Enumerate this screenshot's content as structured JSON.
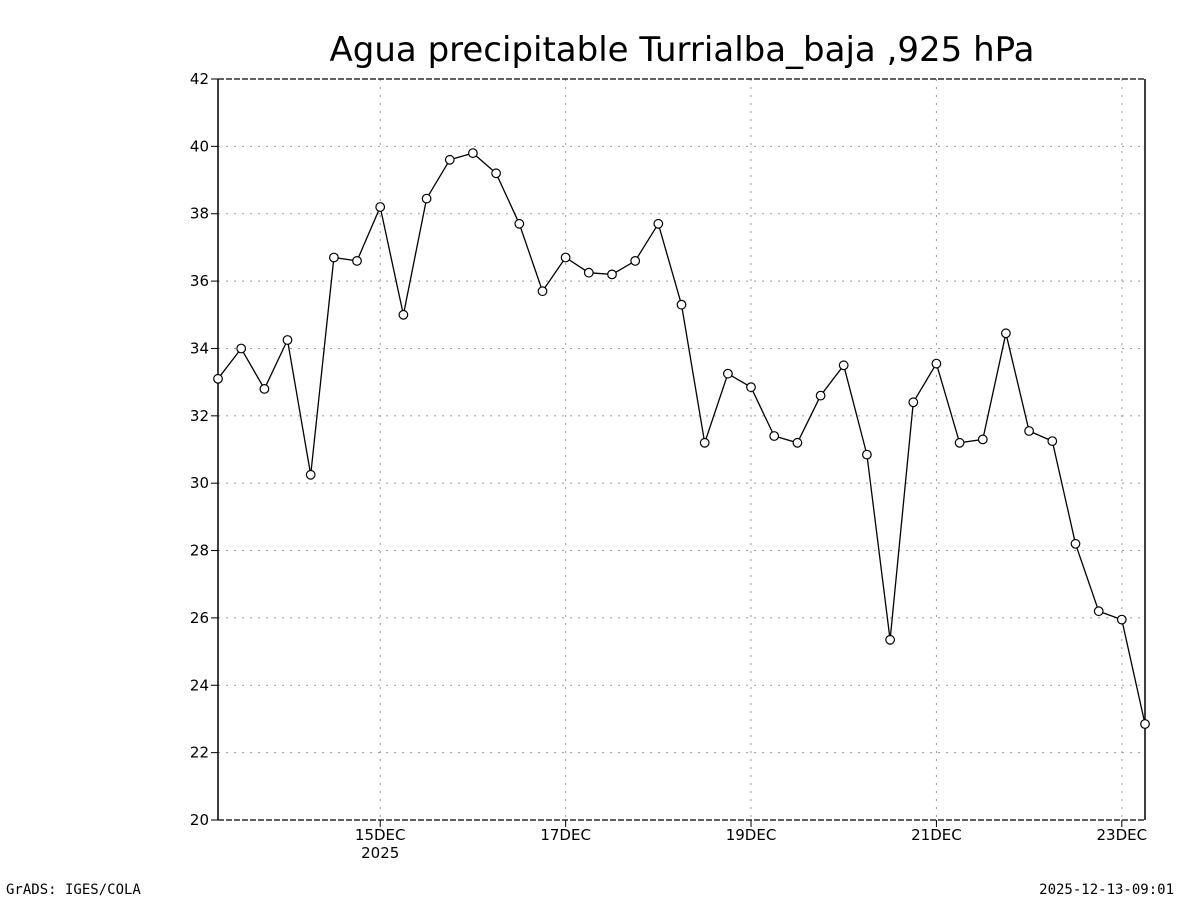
{
  "chart_data": {
    "type": "line",
    "title": "Agua precipitable Turrialba_baja ,925 hPa",
    "xlabel": "",
    "ylabel": "",
    "ylim": [
      20,
      42
    ],
    "yticks": [
      20,
      22,
      24,
      26,
      28,
      30,
      32,
      34,
      36,
      38,
      40,
      42
    ],
    "x_unit": "day of December 2025",
    "xlim": [
      13.25,
      23.25
    ],
    "xticks": [
      {
        "x": 15,
        "label": "15DEC",
        "sublabel": "2025"
      },
      {
        "x": 17,
        "label": "17DEC",
        "sublabel": ""
      },
      {
        "x": 19,
        "label": "19DEC",
        "sublabel": ""
      },
      {
        "x": 21,
        "label": "21DEC",
        "sublabel": ""
      },
      {
        "x": 23,
        "label": "23DEC",
        "sublabel": ""
      }
    ],
    "grid": true,
    "marker": "open-circle",
    "x": [
      13.25,
      13.5,
      13.75,
      14.0,
      14.25,
      14.5,
      14.75,
      15.0,
      15.25,
      15.5,
      15.75,
      16.0,
      16.25,
      16.5,
      16.75,
      17.0,
      17.25,
      17.5,
      17.75,
      18.0,
      18.25,
      18.5,
      18.75,
      19.0,
      19.25,
      19.5,
      19.75,
      20.0,
      20.25,
      20.5,
      20.75,
      21.0,
      21.25,
      21.5,
      21.75,
      22.0,
      22.25,
      22.5,
      22.75,
      23.0,
      23.25
    ],
    "values": [
      33.1,
      34.0,
      32.8,
      34.25,
      30.25,
      36.7,
      36.6,
      38.2,
      35.0,
      38.45,
      39.6,
      39.8,
      39.2,
      37.7,
      35.7,
      36.7,
      36.25,
      36.2,
      36.6,
      37.7,
      35.3,
      31.2,
      33.25,
      32.85,
      31.4,
      31.2,
      32.6,
      33.5,
      30.85,
      25.35,
      32.4,
      33.55,
      31.2,
      31.3,
      34.45,
      31.55,
      31.25,
      28.2,
      26.2,
      25.95,
      22.85
    ]
  },
  "footer": {
    "left": "GrADS: IGES/COLA",
    "right": "2025-12-13-09:01"
  }
}
